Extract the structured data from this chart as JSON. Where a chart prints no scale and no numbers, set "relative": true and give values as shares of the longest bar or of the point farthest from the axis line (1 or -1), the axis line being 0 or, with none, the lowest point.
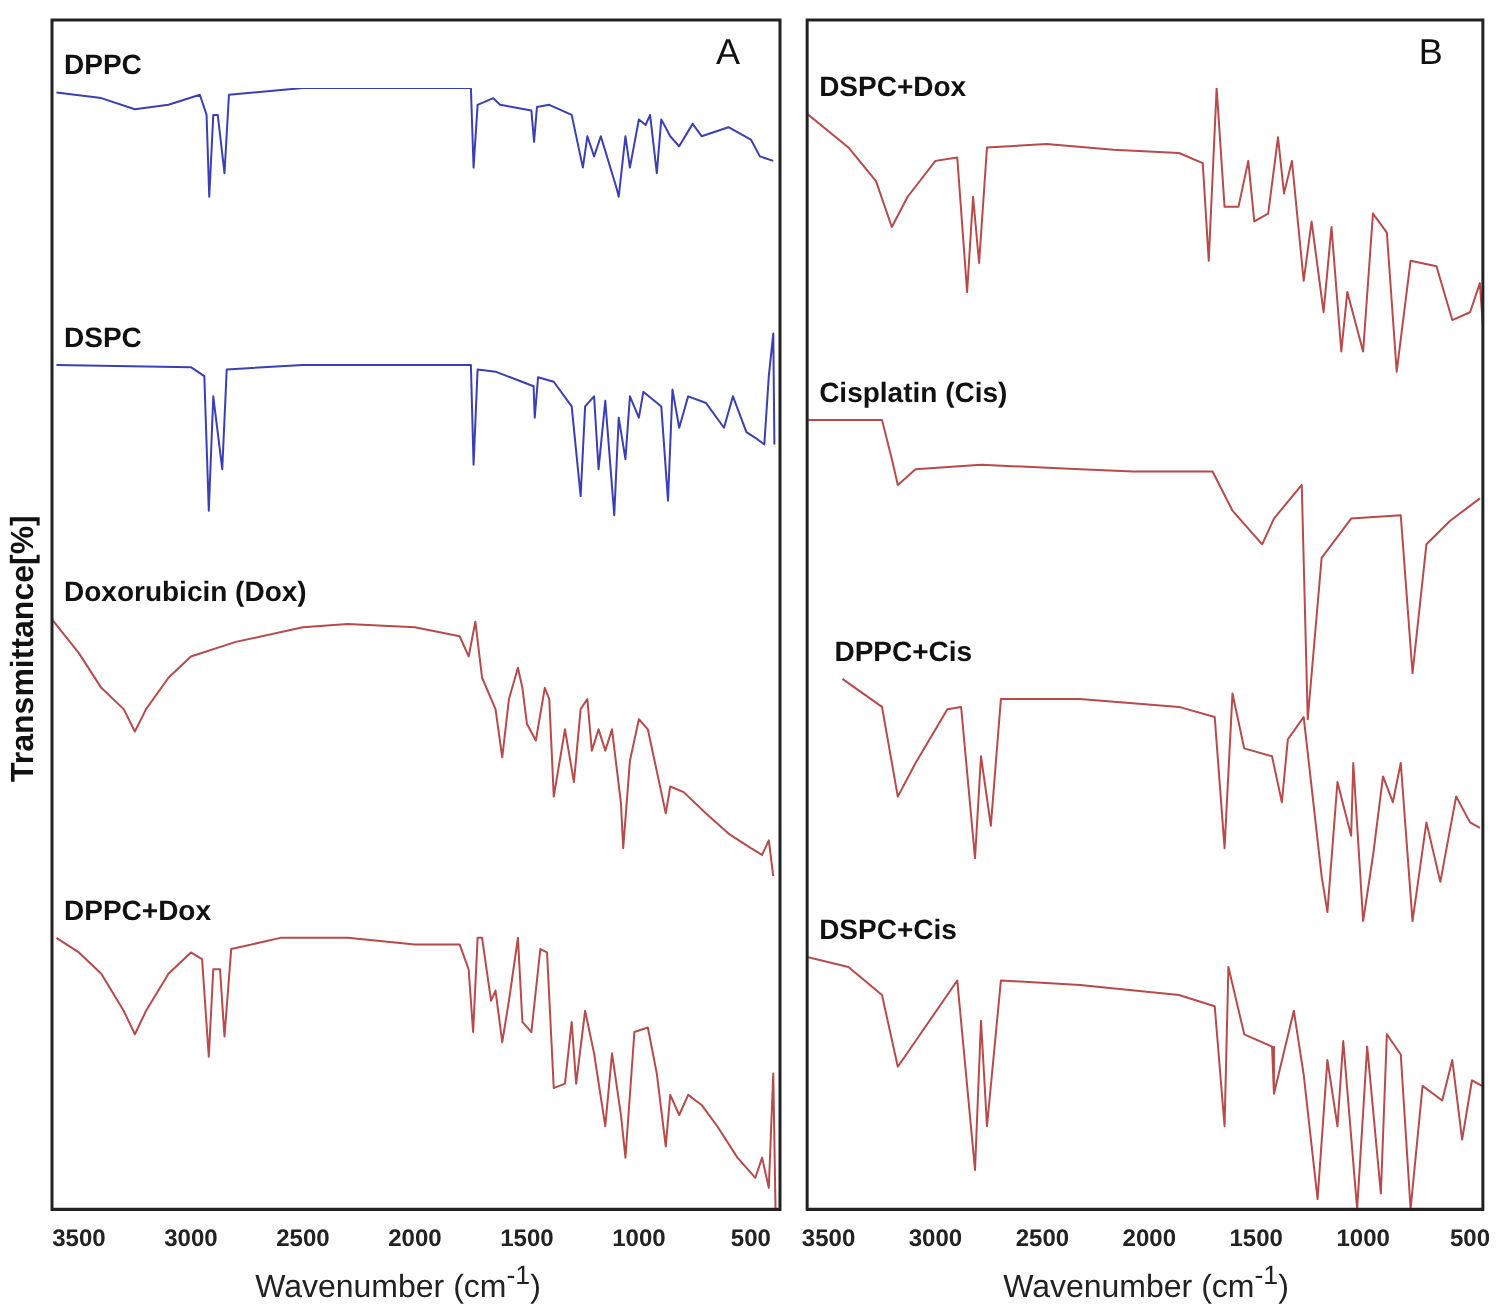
{
  "chart_data": [
    {
      "type": "line",
      "relative": true,
      "xlabel": "Wavenumber (cm$^{-1}$)",
      "ylabel": "Transmittance[%]",
      "annotations": [
        "A"
      ],
      "xlim": [
        3620,
        370
      ],
      "xticks": [
        3500,
        3000,
        2500,
        2000,
        1500,
        1000,
        500
      ],
      "tick_labels": "x",
      "grid": false,
      "legend": false,
      "marker": "none",
      "line_style": "solid",
      "series": [
        {
          "name": "DPPC",
          "color": "#3b3fb5",
          "x": [
            3600,
            3400,
            3250,
            3100,
            2960,
            2930,
            2918,
            2900,
            2880,
            2850,
            2830,
            2500,
            2000,
            1750,
            1738,
            1720,
            1650,
            1620,
            1480,
            1468,
            1455,
            1400,
            1300,
            1250,
            1230,
            1200,
            1170,
            1100,
            1090,
            1060,
            1040,
            1000,
            970,
            950,
            920,
            900,
            860,
            820,
            760,
            720,
            600,
            500,
            460,
            400
          ],
          "values": [
            0.996,
            0.991,
            0.981,
            0.985,
            0.994,
            0.976,
            0.903,
            0.976,
            0.976,
            0.924,
            0.994,
            1,
            1,
            1,
            0.929,
            0.985,
            0.991,
            0.985,
            0.98,
            0.952,
            0.983,
            0.985,
            0.976,
            0.929,
            0.957,
            0.939,
            0.957,
            0.911,
            0.903,
            0.957,
            0.929,
            0.972,
            0.967,
            0.976,
            0.924,
            0.972,
            0.957,
            0.948,
            0.968,
            0.957,
            0.965,
            0.954,
            0.939,
            0.935
          ]
        },
        {
          "name": "DSPC",
          "color": "#3b3fb5",
          "x": [
            3600,
            3000,
            2940,
            2920,
            2900,
            2860,
            2840,
            2500,
            1750,
            1738,
            1720,
            1640,
            1470,
            1465,
            1450,
            1380,
            1300,
            1260,
            1240,
            1200,
            1180,
            1150,
            1110,
            1090,
            1060,
            1040,
            1000,
            980,
            900,
            870,
            850,
            820,
            780,
            700,
            620,
            580,
            520,
            480,
            440,
            420,
            400,
            395
          ],
          "values": [
            0.753,
            0.751,
            0.743,
            0.623,
            0.725,
            0.66,
            0.749,
            0.753,
            0.753,
            0.664,
            0.749,
            0.747,
            0.734,
            0.706,
            0.742,
            0.738,
            0.716,
            0.636,
            0.716,
            0.725,
            0.66,
            0.721,
            0.619,
            0.706,
            0.669,
            0.725,
            0.706,
            0.729,
            0.716,
            0.632,
            0.731,
            0.697,
            0.725,
            0.719,
            0.697,
            0.725,
            0.693,
            0.688,
            0.682,
            0.743,
            0.781,
            0.682
          ]
        },
        {
          "name": "Doxorubicin (Dox)",
          "color": "#b84a4a",
          "x": [
            3620,
            3500,
            3400,
            3300,
            3250,
            3200,
            3100,
            3000,
            2800,
            2500,
            2300,
            2000,
            1800,
            1760,
            1730,
            1700,
            1640,
            1610,
            1580,
            1540,
            1520,
            1500,
            1460,
            1420,
            1400,
            1380,
            1330,
            1290,
            1260,
            1230,
            1210,
            1180,
            1150,
            1120,
            1080,
            1070,
            1040,
            1000,
            960,
            930,
            900,
            880,
            860,
            800,
            700,
            600,
            500,
            450,
            420,
            400
          ],
          "values": [
            0.526,
            0.496,
            0.465,
            0.446,
            0.426,
            0.446,
            0.474,
            0.493,
            0.506,
            0.519,
            0.522,
            0.519,
            0.511,
            0.493,
            0.524,
            0.474,
            0.446,
            0.403,
            0.455,
            0.483,
            0.465,
            0.433,
            0.418,
            0.465,
            0.455,
            0.368,
            0.428,
            0.381,
            0.446,
            0.455,
            0.409,
            0.428,
            0.409,
            0.428,
            0.362,
            0.322,
            0.4,
            0.437,
            0.428,
            0.4,
            0.372,
            0.353,
            0.377,
            0.372,
            0.353,
            0.335,
            0.322,
            0.316,
            0.329,
            0.297
          ]
        },
        {
          "name": "DPPC+Dox",
          "color": "#b84a4a",
          "x": [
            3600,
            3500,
            3400,
            3300,
            3250,
            3200,
            3100,
            3000,
            2950,
            2920,
            2900,
            2870,
            2850,
            2820,
            2600,
            2300,
            2000,
            1800,
            1760,
            1740,
            1720,
            1700,
            1660,
            1640,
            1610,
            1580,
            1540,
            1520,
            1480,
            1440,
            1410,
            1380,
            1330,
            1300,
            1280,
            1240,
            1200,
            1150,
            1120,
            1080,
            1060,
            1020,
            960,
            920,
            880,
            860,
            820,
            780,
            720,
            650,
            560,
            480,
            450,
            420,
            400,
            390
          ],
          "values": [
            0.242,
            0.229,
            0.21,
            0.177,
            0.156,
            0.177,
            0.21,
            0.229,
            0.223,
            0.136,
            0.214,
            0.214,
            0.154,
            0.232,
            0.242,
            0.242,
            0.236,
            0.236,
            0.214,
            0.158,
            0.242,
            0.242,
            0.186,
            0.195,
            0.149,
            0.186,
            0.242,
            0.167,
            0.158,
            0.232,
            0.229,
            0.108,
            0.112,
            0.167,
            0.112,
            0.177,
            0.139,
            0.074,
            0.139,
            0.084,
            0.046,
            0.158,
            0.162,
            0.121,
            0.056,
            0.102,
            0.084,
            0.102,
            0.093,
            0.074,
            0.046,
            0.028,
            0.046,
            0.019,
            0.121,
            0
          ]
        }
      ]
    },
    {
      "type": "line",
      "relative": true,
      "xlabel": "Wavenumber (cm$^{-1}$)",
      "annotations": [
        "B"
      ],
      "xlim": [
        3600,
        440
      ],
      "xticks": [
        3500,
        3000,
        2500,
        2000,
        1500,
        1000,
        500
      ],
      "tick_labels": "x",
      "grid": false,
      "legend": false,
      "marker": "none",
      "line_style": "solid",
      "series": [
        {
          "name": "DSPC+Dox",
          "color": "#b84a4a",
          "x": [
            3600,
            3407,
            3278,
            3204,
            3130,
            3000,
            2898,
            2852,
            2824,
            2796,
            2759,
            2481,
            2167,
            1861,
            1750,
            1722,
            1685,
            1648,
            1583,
            1537,
            1509,
            1444,
            1398,
            1370,
            1333,
            1278,
            1241,
            1185,
            1148,
            1102,
            1074,
            1000,
            954,
            889,
            843,
            778,
            657,
            583,
            500,
            454,
            440
          ],
          "values": [
            0.977,
            0.947,
            0.917,
            0.876,
            0.903,
            0.935,
            0.938,
            0.818,
            0.903,
            0.844,
            0.947,
            0.95,
            0.945,
            0.942,
            0.933,
            0.846,
            1.0,
            0.894,
            0.894,
            0.935,
            0.881,
            0.888,
            0.956,
            0.906,
            0.935,
            0.828,
            0.881,
            0.8,
            0.876,
            0.765,
            0.818,
            0.765,
            0.888,
            0.871,
            0.747,
            0.846,
            0.841,
            0.793,
            0.8,
            0.826,
            0.788
          ]
        },
        {
          "name": "Cisplatin (Cis)",
          "color": "#b84a4a",
          "x": [
            3600,
            3250,
            3204,
            3176,
            3093,
            2787,
            2324,
            2074,
            1704,
            1611,
            1472,
            1417,
            1287,
            1259,
            1194,
            1056,
            824,
            769,
            704,
            593,
            454
          ],
          "values": [
            0.704,
            0.704,
            0.669,
            0.646,
            0.66,
            0.664,
            0.66,
            0.658,
            0.658,
            0.623,
            0.593,
            0.616,
            0.646,
            0.437,
            0.581,
            0.616,
            0.619,
            0.478,
            0.593,
            0.614,
            0.634
          ]
        },
        {
          "name": "DPPC+Cis",
          "color": "#b84a4a",
          "x": [
            3435,
            3250,
            3176,
            3093,
            2944,
            2880,
            2815,
            2787,
            2741,
            2694,
            2324,
            1861,
            1694,
            1648,
            1611,
            1556,
            1426,
            1380,
            1352,
            1278,
            1194,
            1167,
            1120,
            1056,
            1046,
            1000,
            954,
            907,
            861,
            824,
            769,
            704,
            639,
            565,
            500,
            454
          ],
          "values": [
            0.473,
            0.448,
            0.368,
            0.398,
            0.446,
            0.448,
            0.313,
            0.404,
            0.342,
            0.455,
            0.455,
            0.448,
            0.439,
            0.322,
            0.46,
            0.411,
            0.404,
            0.363,
            0.419,
            0.439,
            0.297,
            0.265,
            0.381,
            0.333,
            0.398,
            0.257,
            0.315,
            0.386,
            0.363,
            0.398,
            0.257,
            0.345,
            0.292,
            0.368,
            0.345,
            0.34
          ]
        },
        {
          "name": "DSPC+Cis",
          "color": "#b84a4a",
          "x": [
            3600,
            3407,
            3250,
            3176,
            3093,
            2898,
            2815,
            2787,
            2759,
            2694,
            2324,
            1861,
            1694,
            1648,
            1630,
            1556,
            1426,
            1417,
            1324,
            1278,
            1213,
            1167,
            1120,
            1093,
            1028,
            981,
            917,
            889,
            824,
            778,
            722,
            630,
            583,
            537,
            491,
            444
          ],
          "values": [
            0.225,
            0.216,
            0.191,
            0.127,
            0.15,
            0.204,
            0.035,
            0.168,
            0.074,
            0.204,
            0.2,
            0.191,
            0.181,
            0.074,
            0.216,
            0.156,
            0.145,
            0.103,
            0.177,
            0.12,
            0.009,
            0.133,
            0.074,
            0.15,
            0,
            0.145,
            0.014,
            0.156,
            0.138,
            0,
            0.11,
            0.097,
            0.133,
            0.062,
            0.115,
            0.11
          ]
        }
      ]
    }
  ]
}
